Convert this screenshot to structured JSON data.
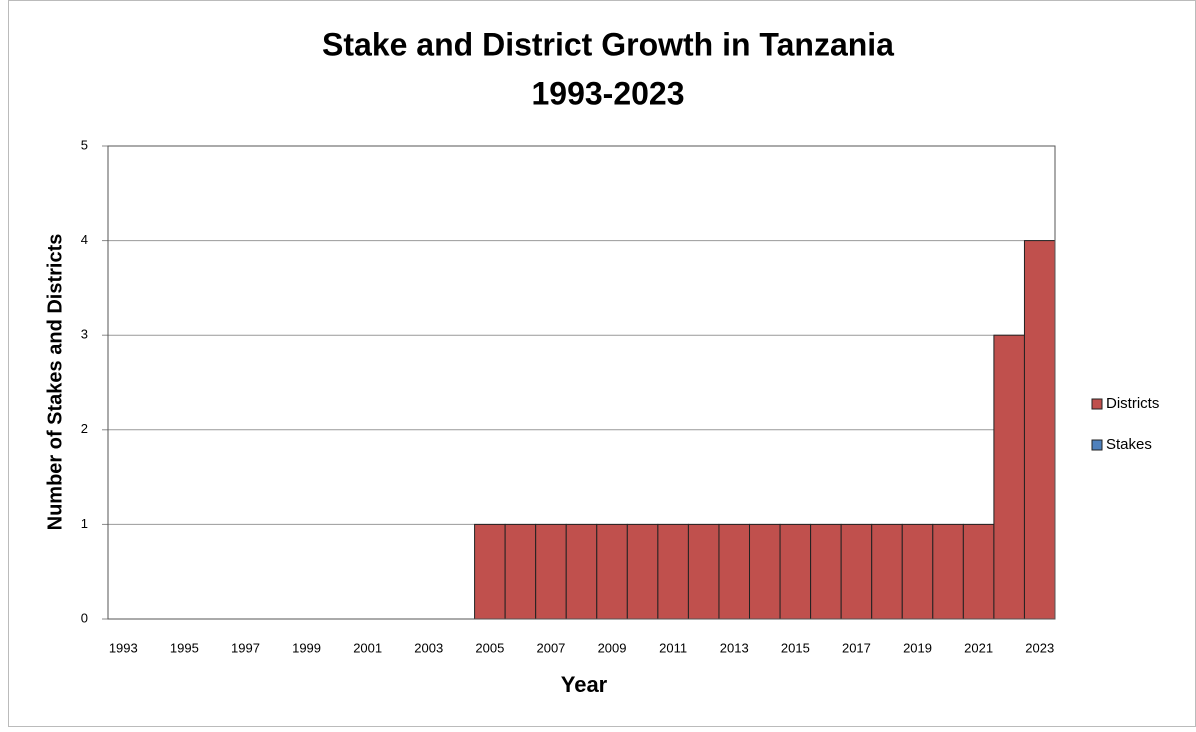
{
  "chart_data": {
    "type": "bar",
    "stacked": true,
    "title": [
      "Stake and District Growth in Tanzania",
      "1993-2023"
    ],
    "x_label": "Year",
    "y_label": "Number of Stakes and Districts",
    "categories": [
      "1993",
      null,
      "1995",
      null,
      "1997",
      null,
      "1999",
      null,
      "2001",
      null,
      "2003",
      null,
      "2005",
      null,
      "2007",
      null,
      "2009",
      null,
      "2011",
      null,
      "2013",
      null,
      "2015",
      null,
      "2017",
      null,
      "2019",
      null,
      "2021",
      null,
      "2023"
    ],
    "series": [
      {
        "name": "Districts",
        "color": "#c0504d",
        "values": [
          0,
          0,
          0,
          0,
          0,
          0,
          0,
          0,
          0,
          0,
          0,
          0,
          1,
          1,
          1,
          1,
          1,
          1,
          1,
          1,
          1,
          1,
          1,
          1,
          1,
          1,
          1,
          1,
          1,
          3,
          4
        ]
      },
      {
        "name": "Stakes",
        "color": "#4f81bd",
        "values": [
          0,
          0,
          0,
          0,
          0,
          0,
          0,
          0,
          0,
          0,
          0,
          0,
          0,
          0,
          0,
          0,
          0,
          0,
          0,
          0,
          0,
          0,
          0,
          0,
          0,
          0,
          0,
          0,
          0,
          0,
          0
        ]
      }
    ],
    "ylim": [
      0,
      5
    ],
    "yticks": [
      0,
      1,
      2,
      3,
      4,
      5
    ],
    "grid": true,
    "legend": "right"
  }
}
